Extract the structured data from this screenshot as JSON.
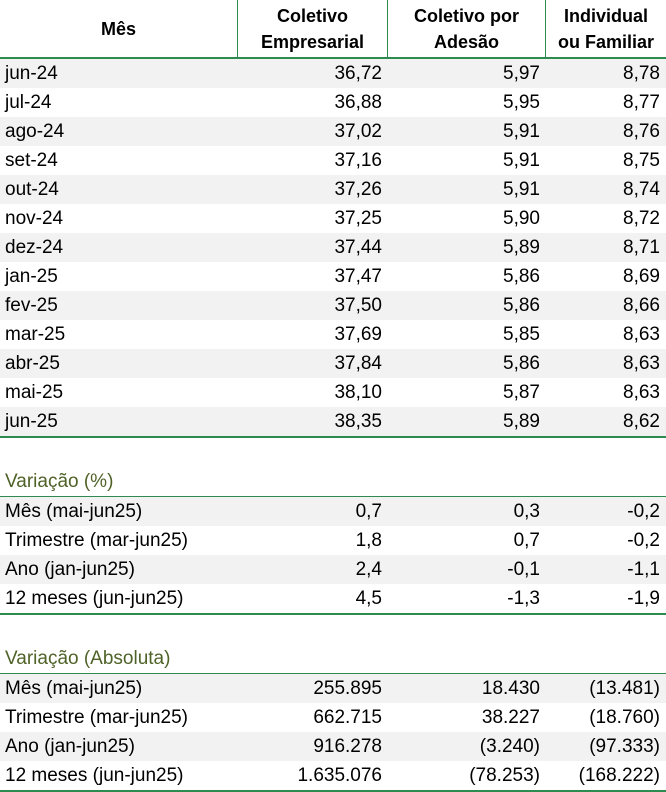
{
  "header": {
    "col0": "Mês",
    "col1_line1": "Coletivo",
    "col1_line2": "Empresarial",
    "col2_line1": "Coletivo por",
    "col2_line2": "Adesão",
    "col3_line1": "Individual",
    "col3_line2": "ou Familiar"
  },
  "monthly": [
    {
      "mes": "jun-24",
      "emp": "36,72",
      "ade": "5,97",
      "ind": "8,78"
    },
    {
      "mes": "jul-24",
      "emp": "36,88",
      "ade": "5,95",
      "ind": "8,77"
    },
    {
      "mes": "ago-24",
      "emp": "37,02",
      "ade": "5,91",
      "ind": "8,76"
    },
    {
      "mes": "set-24",
      "emp": "37,16",
      "ade": "5,91",
      "ind": "8,75"
    },
    {
      "mes": "out-24",
      "emp": "37,26",
      "ade": "5,91",
      "ind": "8,74"
    },
    {
      "mes": "nov-24",
      "emp": "37,25",
      "ade": "5,90",
      "ind": "8,72"
    },
    {
      "mes": "dez-24",
      "emp": "37,44",
      "ade": "5,89",
      "ind": "8,71"
    },
    {
      "mes": "jan-25",
      "emp": "37,47",
      "ade": "5,86",
      "ind": "8,69"
    },
    {
      "mes": "fev-25",
      "emp": "37,50",
      "ade": "5,86",
      "ind": "8,66"
    },
    {
      "mes": "mar-25",
      "emp": "37,69",
      "ade": "5,85",
      "ind": "8,63"
    },
    {
      "mes": "abr-25",
      "emp": "37,84",
      "ade": "5,86",
      "ind": "8,63"
    },
    {
      "mes": "mai-25",
      "emp": "38,10",
      "ade": "5,87",
      "ind": "8,63"
    },
    {
      "mes": "jun-25",
      "emp": "38,35",
      "ade": "5,89",
      "ind": "8,62"
    }
  ],
  "variacao_pct": {
    "title": "Variação (%)",
    "rows": [
      {
        "label": "Mês (mai-jun25)",
        "emp": "0,7",
        "ade": "0,3",
        "ind": "-0,2"
      },
      {
        "label": "Trimestre (mar-jun25)",
        "emp": "1,8",
        "ade": "0,7",
        "ind": "-0,2"
      },
      {
        "label": "Ano (jan-jun25)",
        "emp": "2,4",
        "ade": "-0,1",
        "ind": "-1,1"
      },
      {
        "label": "12 meses (jun-jun25)",
        "emp": "4,5",
        "ade": "-1,3",
        "ind": "-1,9"
      }
    ]
  },
  "variacao_abs": {
    "title": "Variação (Absoluta)",
    "rows": [
      {
        "label": "Mês (mai-jun25)",
        "emp": "255.895",
        "ade": "18.430",
        "ind": "(13.481)"
      },
      {
        "label": "Trimestre (mar-jun25)",
        "emp": "662.715",
        "ade": "38.227",
        "ind": "(18.760)"
      },
      {
        "label": "Ano (jan-jun25)",
        "emp": "916.278",
        "ade": "(3.240)",
        "ind": "(97.333)"
      },
      {
        "label": "12 meses (jun-jun25)",
        "emp": "1.635.076",
        "ade": "(78.253)",
        "ind": "(168.222)"
      }
    ]
  }
}
